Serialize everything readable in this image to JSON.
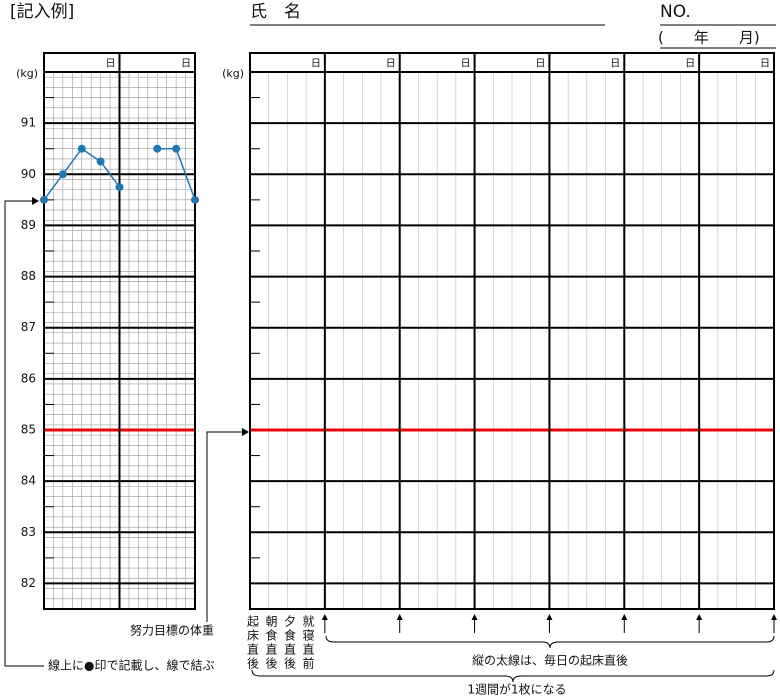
{
  "header": {
    "example_label": "[記入例]",
    "name_label": "氏　名",
    "number_label": "NO.",
    "period_label": "(　　年　　月)"
  },
  "chart_data": [
    {
      "type": "line",
      "y_label": "(kg)",
      "day_labels": [
        "日",
        "日"
      ],
      "ylim": [
        81.5,
        92
      ],
      "yticks": [
        82,
        83,
        84,
        85,
        86,
        87,
        88,
        89,
        90,
        91
      ],
      "xlim": [
        0,
        8
      ],
      "x": [
        0,
        1,
        2,
        3,
        4,
        5,
        6,
        7,
        8
      ],
      "series": [
        {
          "color": "#1f77b4",
          "values": [
            89.5,
            90,
            90.5,
            90.25,
            89.75,
            null,
            90.5,
            90.5,
            89.5
          ]
        }
      ],
      "target": 85,
      "target_color": "#e8000b"
    },
    {
      "type": "grid",
      "y_label": "(kg)",
      "day_labels": [
        "日",
        "日",
        "日",
        "日",
        "日",
        "日",
        "日"
      ],
      "ylim": [
        81.5,
        92
      ],
      "target": 85,
      "target_color": "#e8000b"
    }
  ],
  "annotations": {
    "target_note": "努力目標の体重",
    "marking_note": "線上に●印で記載し、線で結ぶ",
    "slot_labels": [
      "起床直後",
      "朝食直後",
      "夕食直後",
      "就寝直前"
    ],
    "daily_line_note": "縦の太線は、毎日の起床直後",
    "week_note": "1週間が1枚になる"
  }
}
